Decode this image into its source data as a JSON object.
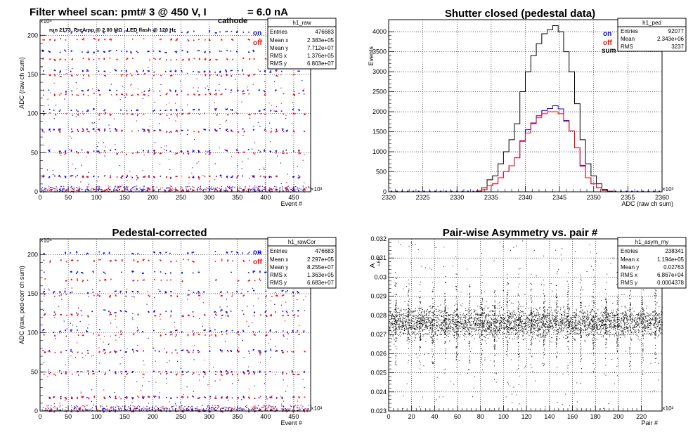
{
  "panels": {
    "raw": {
      "title": "Filter wheel scan: pmt#   3 @   450 V, I",
      "title_sub": "cathode",
      "title_tail": " = 6.0 nA",
      "info": "run 2173, PreAmp @ 2.00 MΩ , LED flash @  120 Hz",
      "legend": {
        "on": "on",
        "off": "off"
      },
      "stats": {
        "name": "h1_raw",
        "rows": [
          {
            "k": "Entries",
            "v": "476683"
          },
          {
            "k": "Mean x",
            "v": "2.383e+05"
          },
          {
            "k": "Mean y",
            "v": "7.712e+07"
          },
          {
            "k": "RMS x",
            "v": "1.376e+05"
          },
          {
            "k": "RMS y",
            "v": "6.803e+07"
          }
        ]
      },
      "xlabel": "Event #",
      "ylabel": "ADC (raw ch sum)",
      "xexp": "×10³",
      "yexp": "×10⁶"
    },
    "ped": {
      "title": "Shutter closed (pedestal data)",
      "legend": {
        "on": "on",
        "off": "off",
        "sum": "sum"
      },
      "stats": {
        "name": "h1_ped",
        "rows": [
          {
            "k": "Entries",
            "v": "92077"
          },
          {
            "k": "Mean",
            "v": "2.343e+06"
          },
          {
            "k": "RMS",
            "v": "3237"
          }
        ]
      },
      "xlabel": "ADC (raw ch sum)",
      "ylabel": "Events",
      "xexp": "×10³"
    },
    "cor": {
      "title": "Pedestal-corrected",
      "legend": {
        "on": "on",
        "off": "off"
      },
      "stats": {
        "name": "h1_rawCor",
        "rows": [
          {
            "k": "Entries",
            "v": "476683"
          },
          {
            "k": "Mean x",
            "v": "2.297e+05"
          },
          {
            "k": "Mean y",
            "v": "8.255e+07"
          },
          {
            "k": "RMS x",
            "v": "1.363e+05"
          },
          {
            "k": "RMS y",
            "v": "6.683e+07"
          }
        ]
      },
      "xlabel": "Event #",
      "ylabel": "ADC (raw, ped-corr ch sum)",
      "xexp": "×10³",
      "yexp": "×10⁶"
    },
    "asym": {
      "title": "Pair-wise Asymmetry vs. pair #",
      "stats": {
        "name": "h1_asym_my",
        "rows": [
          {
            "k": "Entries",
            "v": "238341"
          },
          {
            "k": "Mean x",
            "v": "1.194e+05"
          },
          {
            "k": "Mean y",
            "v": "0.02763"
          },
          {
            "k": "RMS x",
            "v": "6.867e+04"
          },
          {
            "k": "RMS y",
            "v": "0.0004378"
          }
        ]
      },
      "xlabel": "Pair #",
      "ylabel": "A",
      "ylabel_sub": "LED",
      "xexp": "×10³"
    }
  },
  "colors": {
    "on": "#0000ff",
    "off": "#ff0000",
    "sum": "#000000"
  },
  "chart_data": [
    {
      "id": "raw",
      "type": "scatter",
      "xlim": [
        0,
        480
      ],
      "ylim": [
        0,
        220
      ],
      "xticks": [
        0,
        50,
        100,
        150,
        200,
        250,
        300,
        350,
        400,
        450
      ],
      "yticks": [
        0,
        50,
        100,
        150,
        200
      ],
      "grid": true,
      "legend_position": "top-right",
      "series": [
        {
          "name": "on",
          "levels": [
            3,
            20,
            53,
            80,
            105,
            130,
            155,
            180,
            205
          ]
        },
        {
          "name": "off",
          "levels": [
            3,
            20,
            50,
            78,
            100,
            125,
            150,
            170,
            195
          ]
        }
      ]
    },
    {
      "id": "ped",
      "type": "histogram",
      "xlim": [
        2320,
        2360
      ],
      "ylim": [
        0,
        4300
      ],
      "xticks": [
        2320,
        2325,
        2330,
        2335,
        2340,
        2345,
        2350,
        2355,
        2360
      ],
      "yticks": [
        0,
        500,
        1000,
        1500,
        2000,
        2500,
        3000,
        3500,
        4000
      ],
      "grid": true,
      "legend_position": "top-right",
      "bin_width": 0.8,
      "x": [
        2333.2,
        2334.0,
        2334.8,
        2335.6,
        2336.4,
        2337.2,
        2338.0,
        2338.8,
        2339.6,
        2340.4,
        2341.2,
        2342.0,
        2342.8,
        2343.6,
        2344.4,
        2345.2,
        2346.0,
        2346.8,
        2347.6,
        2348.4,
        2349.2,
        2350.0,
        2350.8,
        2351.6,
        2352.4
      ],
      "series": [
        {
          "name": "sum",
          "values": [
            20,
            100,
            300,
            400,
            700,
            1000,
            1300,
            1700,
            2500,
            3000,
            3400,
            3700,
            3950,
            4050,
            4150,
            4000,
            3500,
            3000,
            2200,
            1300,
            700,
            400,
            200,
            60,
            15
          ]
        },
        {
          "name": "on",
          "values": [
            10,
            50,
            150,
            200,
            350,
            500,
            650,
            850,
            1280,
            1550,
            1720,
            1900,
            2030,
            2080,
            2150,
            2070,
            1780,
            1520,
            1100,
            660,
            350,
            200,
            100,
            30,
            8
          ]
        },
        {
          "name": "off",
          "values": [
            10,
            50,
            150,
            200,
            350,
            500,
            650,
            850,
            1260,
            1470,
            1700,
            1850,
            1950,
            2000,
            2000,
            1950,
            1760,
            1520,
            1100,
            640,
            350,
            200,
            100,
            30,
            7
          ]
        }
      ]
    },
    {
      "id": "cor",
      "type": "scatter",
      "xlim": [
        0,
        480
      ],
      "ylim": [
        0,
        220
      ],
      "xticks": [
        0,
        50,
        100,
        150,
        200,
        250,
        300,
        350,
        400,
        450
      ],
      "yticks": [
        0,
        50,
        100,
        150,
        200
      ],
      "grid": true,
      "legend_position": "top-right",
      "series": [
        {
          "name": "on",
          "levels": [
            1,
            18,
            51,
            78,
            103,
            128,
            153,
            178,
            203
          ]
        },
        {
          "name": "off",
          "levels": [
            1,
            18,
            48,
            76,
            98,
            123,
            148,
            168,
            193
          ]
        }
      ]
    },
    {
      "id": "asym",
      "type": "scatter",
      "xlim": [
        0,
        238
      ],
      "ylim": [
        0.023,
        0.032
      ],
      "xticks": [
        0,
        20,
        40,
        60,
        80,
        100,
        120,
        140,
        160,
        180,
        200,
        220
      ],
      "yticks": [
        0.023,
        0.024,
        0.025,
        0.026,
        0.027,
        0.028,
        0.029,
        0.03,
        0.031,
        0.032
      ],
      "grid": true,
      "band": {
        "center": 0.02763,
        "half_width": 0.0005
      },
      "spikes_x": [
        6,
        17,
        27,
        38,
        49,
        59,
        70,
        81,
        92,
        103,
        113,
        124,
        135,
        146,
        156,
        167,
        178,
        189,
        199,
        210,
        221,
        232
      ]
    }
  ]
}
